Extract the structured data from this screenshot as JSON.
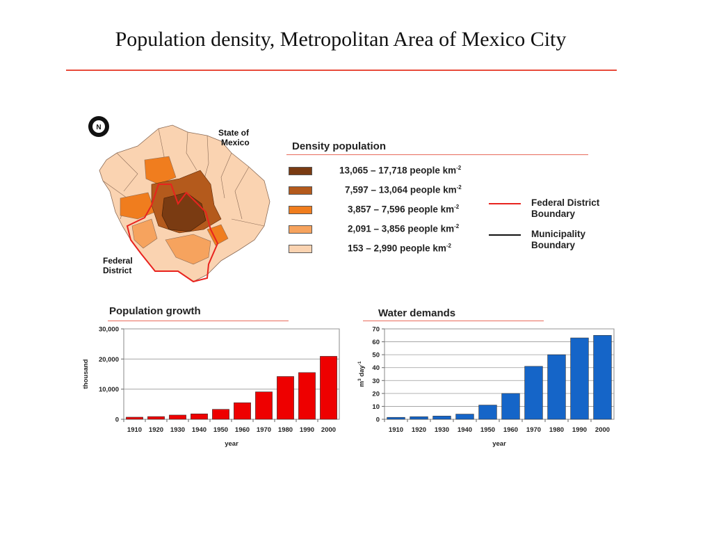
{
  "slide": {
    "title": "Population density, Metropolitan Area of Mexico City",
    "accent": "#e84a3a"
  },
  "map": {
    "north_label": "N",
    "state_label_line1": "State of",
    "state_label_line2": "Mexico",
    "district_label_line1": "Federal",
    "district_label_line2": "District",
    "boundary_color": "#e8231e"
  },
  "legend": {
    "title": "Density population",
    "classes": [
      {
        "range": "13,065  –  17,718 people km",
        "exp": "-2",
        "color": "#7a3b12"
      },
      {
        "range": "7,597  – 13,064 people km",
        "exp": "-2",
        "color": "#b45a1c"
      },
      {
        "range": "3,857 –  7,596 people km",
        "exp": "-2",
        "color": "#f07d1e"
      },
      {
        "range": "2,091 –  3,856 people km",
        "exp": "-2",
        "color": "#f6a35e"
      },
      {
        "range": "153    –  2,990 people km",
        "exp": "-2",
        "color": "#fad3b1"
      }
    ],
    "federal_line1": "Federal District",
    "federal_line2": "Boundary",
    "municipality_line1": "Municipality",
    "municipality_line2": "Boundary"
  },
  "chart_data": [
    {
      "type": "bar",
      "title": "Population growth",
      "categories": [
        "1910",
        "1920",
        "1930",
        "1940",
        "1950",
        "1960",
        "1970",
        "1980",
        "1990",
        "2000"
      ],
      "values": [
        700,
        900,
        1400,
        1800,
        3300,
        5500,
        9100,
        14200,
        15500,
        20900
      ],
      "xlabel": "year",
      "ylabel": "thousand",
      "ylim": [
        0,
        30000
      ],
      "yticks": [
        "0",
        "10,000",
        "20,000",
        "30,000"
      ],
      "color": "#ee0000",
      "grid": true
    },
    {
      "type": "bar",
      "title": "Water demands",
      "categories": [
        "1910",
        "1920",
        "1930",
        "1940",
        "1950",
        "1960",
        "1970",
        "1980",
        "1990",
        "2000"
      ],
      "values": [
        1.5,
        2,
        2.5,
        4,
        11,
        20,
        41,
        50,
        63,
        65
      ],
      "xlabel": "year",
      "ylabel": "m3 day-1",
      "ylim": [
        0,
        70
      ],
      "yticks": [
        "0",
        "10",
        "20",
        "30",
        "40",
        "50",
        "60",
        "70"
      ],
      "color": "#1565c8",
      "grid": true
    }
  ]
}
